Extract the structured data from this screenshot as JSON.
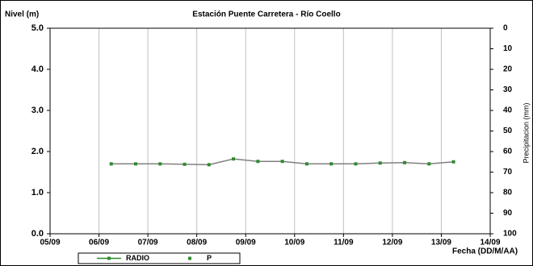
{
  "chart_data": {
    "type": "line",
    "title": "Estación Puente Carretera - Río Coello",
    "ylabel": "Nivel (m)",
    "y2label": "Precipitacion (mm)",
    "xlabel": "Fecha (DD/M/AA)",
    "x": [
      6.25,
      6.75,
      7.25,
      7.75,
      8.25,
      8.75,
      9.25,
      9.75,
      10.25,
      10.75,
      11.25,
      11.75,
      12.25,
      12.75,
      13.25
    ],
    "series": [
      {
        "name": "RADIO",
        "color": "#2e8b2e",
        "line_color": "#808080",
        "values": [
          1.7,
          1.7,
          1.7,
          1.69,
          1.68,
          1.82,
          1.76,
          1.76,
          1.7,
          1.7,
          1.7,
          1.72,
          1.73,
          1.7,
          1.75
        ]
      },
      {
        "name": "P",
        "color": "#2e8b2e",
        "axis": "y2",
        "values": [
          null,
          null,
          null,
          null,
          null,
          null,
          null,
          null,
          null,
          null,
          null,
          null,
          null,
          null,
          null
        ]
      }
    ],
    "xlim": [
      5,
      14
    ],
    "xticks": [
      {
        "value": 5,
        "label": "05/09"
      },
      {
        "value": 6,
        "label": "06/09"
      },
      {
        "value": 7,
        "label": "07/09"
      },
      {
        "value": 8,
        "label": "08/09"
      },
      {
        "value": 9,
        "label": "09/09"
      },
      {
        "value": 10,
        "label": "10/09"
      },
      {
        "value": 11,
        "label": "11/09"
      },
      {
        "value": 12,
        "label": "12/09"
      },
      {
        "value": 13,
        "label": "13/09"
      },
      {
        "value": 14,
        "label": "14/09"
      }
    ],
    "ylim": [
      0,
      5
    ],
    "yticks": [
      {
        "value": 0,
        "label": "0.0"
      },
      {
        "value": 1,
        "label": "1.0"
      },
      {
        "value": 2,
        "label": "2.0"
      },
      {
        "value": 3,
        "label": "3.0"
      },
      {
        "value": 4,
        "label": "4.0"
      },
      {
        "value": 5,
        "label": "5.0"
      }
    ],
    "y2lim": [
      0,
      100
    ],
    "y2_inverted": true,
    "y2ticks": [
      0,
      10,
      20,
      30,
      40,
      50,
      60,
      70,
      80,
      90,
      100
    ],
    "xgrid": true
  }
}
